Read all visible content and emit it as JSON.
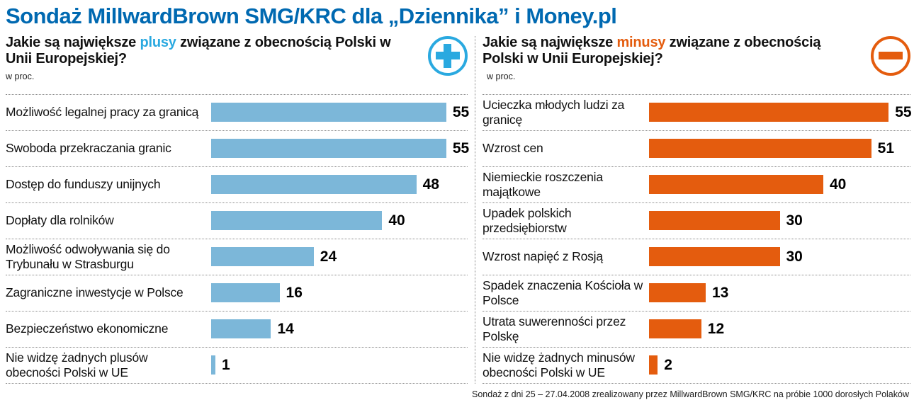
{
  "title": "Sondaż MillwardBrown SMG/KRC dla „Dziennika” i Money.pl",
  "charts": [
    {
      "question_pre": "Jakie są największe ",
      "keyword": "plusy",
      "question_post": " związane z obecnością Polski w Unii Europejskiej?",
      "unit": "w proc.",
      "icon": "plus-icon"
    },
    {
      "question_pre": "Jakie są największe ",
      "keyword": "minusy",
      "question_post": " związane z obecnością Polski w Unii Europejskiej?",
      "unit": "w proc.",
      "icon": "minus-icon"
    }
  ],
  "chart_data": [
    {
      "type": "bar",
      "orientation": "horizontal",
      "title": "Jakie są największe plusy związane z obecnością Polski w Unii Europejskiej?",
      "unit": "w proc.",
      "categories": [
        "Możliwość legalnej pracy za granicą",
        "Swoboda przekraczania granic",
        "Dostęp do funduszy unijnych",
        "Dopłaty dla rolników",
        "Możliwość odwoływania się do Trybunału w Strasburgu",
        "Zagraniczne inwestycje w Polsce",
        "Bezpieczeństwo ekonomiczne",
        "Nie widzę żadnych plusów obecności Polski w UE"
      ],
      "values": [
        55,
        55,
        48,
        40,
        24,
        16,
        14,
        1
      ],
      "bar_color": "#7cb7d9",
      "value_axis_max": 60,
      "grid": false,
      "legend": false
    },
    {
      "type": "bar",
      "orientation": "horizontal",
      "title": "Jakie są największe minusy związane z obecnością Polski w Unii Europejskiej?",
      "unit": "w proc.",
      "categories": [
        "Ucieczka młodych ludzi za granicę",
        "Wzrost cen",
        "Niemieckie roszczenia majątkowe",
        "Upadek polskich przedsiębiorstw",
        "Wzrost napięć z Rosją",
        "Spadek znaczenia Kościoła w Polsce",
        "Utrata suwerenności przez Polskę",
        "Nie widzę żadnych minusów obecności Polski w UE"
      ],
      "values": [
        55,
        51,
        40,
        30,
        30,
        13,
        12,
        2
      ],
      "bar_color": "#e45c0e",
      "value_axis_max": 60,
      "grid": false,
      "legend": false
    }
  ],
  "colors": {
    "title_blue": "#0069b1",
    "plus_accent": "#2aa9e0",
    "minus_accent": "#e45c0e",
    "bar_blue": "#7cb7d9",
    "bar_orange": "#e45c0e",
    "divider_gray": "#8c8c8c"
  },
  "footer": "Sondaż z dni 25 – 27.04.2008 zrealizowany przez MillwardBrown SMG/KRC na próbie 1000 dorosłych Polaków"
}
